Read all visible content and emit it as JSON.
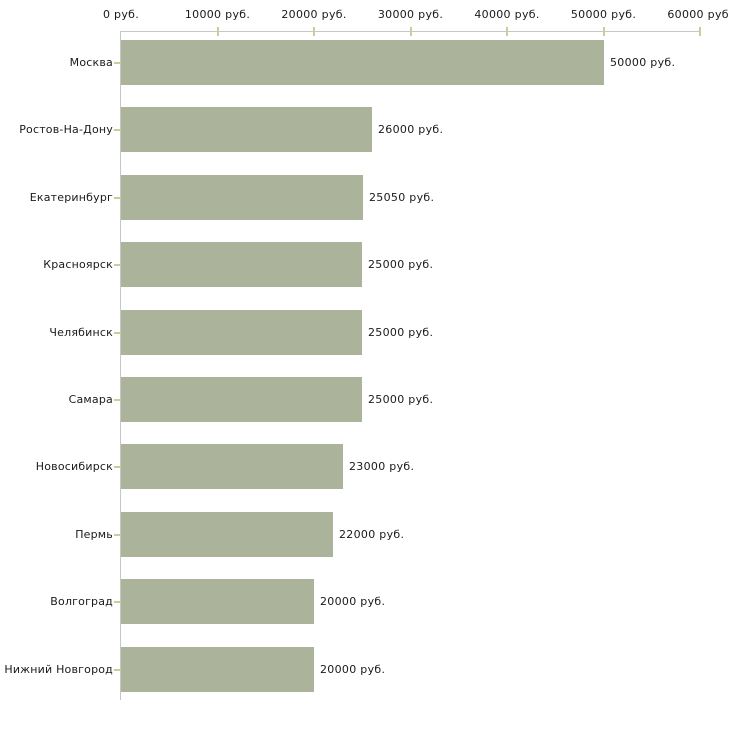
{
  "chart_data": {
    "type": "bar",
    "orientation": "horizontal",
    "title": "",
    "xlabel": "",
    "ylabel": "",
    "unit": "руб.",
    "categories": [
      "Москва",
      "Ростов-На-Дону",
      "Екатеринбург",
      "Красноярск",
      "Челябинск",
      "Самара",
      "Новосибирск",
      "Пермь",
      "Волгоград",
      "Нижний Новгород"
    ],
    "values": [
      50000,
      26000,
      25050,
      25000,
      25000,
      25000,
      23000,
      22000,
      20000,
      20000
    ],
    "value_labels": [
      "50000 руб.",
      "26000 руб.",
      "25050 руб.",
      "25000 руб.",
      "25000 руб.",
      "25000 руб.",
      "23000 руб.",
      "22000 руб.",
      "20000 руб.",
      "20000 руб."
    ],
    "x_ticks": [
      {
        "value": 0,
        "label": "0 руб."
      },
      {
        "value": 10000,
        "label": "10000 руб."
      },
      {
        "value": 20000,
        "label": "20000 руб."
      },
      {
        "value": 30000,
        "label": "30000 руб."
      },
      {
        "value": 40000,
        "label": "40000 руб."
      },
      {
        "value": 50000,
        "label": "50000 руб."
      },
      {
        "value": 60000,
        "label": "60000 руб."
      }
    ],
    "xlim": [
      0,
      60000
    ],
    "grid": false,
    "legend": "none",
    "colors": {
      "bar": "#abb39b",
      "axis": "#c6c6c6",
      "tick": "#cccc99",
      "text": "#1a1a1a",
      "background": "#ffffff"
    }
  }
}
